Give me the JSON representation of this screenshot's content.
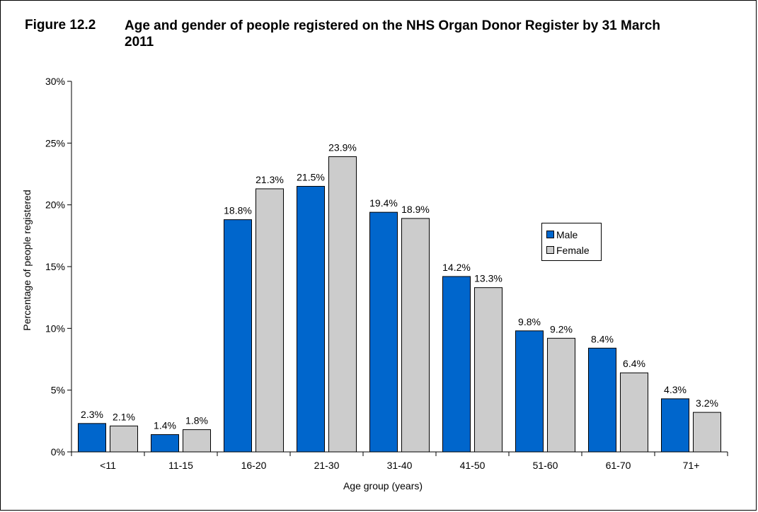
{
  "figure": {
    "label": "Figure 12.2",
    "title": "Age and gender of people registered on the NHS Organ Donor Register by 31 March 2011"
  },
  "chart_data": {
    "type": "bar",
    "title": "Age and gender of people registered on the NHS Organ Donor Register by 31 March 2011",
    "xlabel": "Age group (years)",
    "ylabel": "Percentage of people registered",
    "categories": [
      "<11",
      "11-15",
      "16-20",
      "21-30",
      "31-40",
      "41-50",
      "51-60",
      "61-70",
      "71+"
    ],
    "series": [
      {
        "name": "Male",
        "color": "#0066CC",
        "values": [
          2.3,
          1.4,
          18.8,
          21.5,
          19.4,
          14.2,
          9.8,
          8.4,
          4.3
        ],
        "labels": [
          "2.3%",
          "1.4%",
          "18.8%",
          "21.5%",
          "19.4%",
          "14.2%",
          "9.8%",
          "8.4%",
          "4.3%"
        ]
      },
      {
        "name": "Female",
        "color": "#CCCCCC",
        "values": [
          2.1,
          1.8,
          21.3,
          23.9,
          18.9,
          13.3,
          9.2,
          6.4,
          3.2
        ],
        "labels": [
          "2.1%",
          "1.8%",
          "21.3%",
          "23.9%",
          "18.9%",
          "13.3%",
          "9.2%",
          "6.4%",
          "3.2%"
        ]
      }
    ],
    "ylim": [
      0,
      30
    ],
    "yticks": [
      0,
      5,
      10,
      15,
      20,
      25,
      30
    ],
    "ytick_labels": [
      "0%",
      "5%",
      "10%",
      "15%",
      "20%",
      "25%",
      "30%"
    ],
    "grid": false,
    "legend_position": "right"
  }
}
